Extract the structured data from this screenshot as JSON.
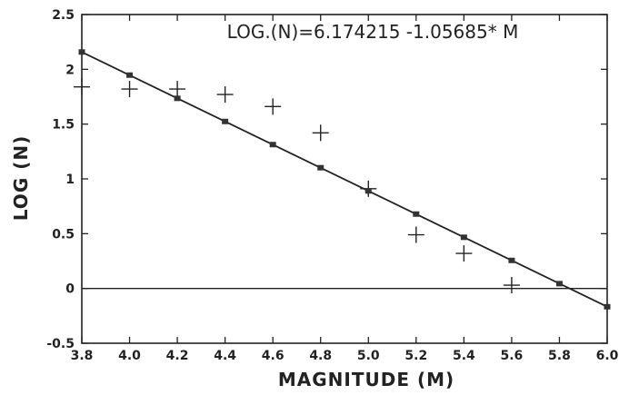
{
  "chart_data": {
    "type": "scatter",
    "title": "LOG.(N)=6.174215 -1.05685* M",
    "xlabel": "MAGNITUDE (M)",
    "ylabel": "LOG (N)",
    "xlim": [
      3.8,
      6.0
    ],
    "ylim": [
      -0.5,
      2.5
    ],
    "x_ticks": [
      "3.8",
      "4.0",
      "4.2",
      "4.4",
      "4.6",
      "4.8",
      "5.0",
      "5.2",
      "5.4",
      "5.6",
      "5.8",
      "6.0"
    ],
    "y_ticks": [
      "-0.5",
      "0",
      "0.5",
      "1",
      "1.5",
      "2",
      "2.5"
    ],
    "grid": false,
    "legend": "none",
    "zero_line": 0,
    "series": [
      {
        "marker": "plus",
        "x": [
          3.8,
          4.0,
          4.2,
          4.4,
          4.6,
          4.8,
          5.0,
          5.2,
          5.4,
          5.6
        ],
        "y": [
          1.84,
          1.82,
          1.82,
          1.77,
          1.66,
          1.42,
          0.91,
          0.49,
          0.32,
          0.03
        ]
      },
      {
        "marker": "square",
        "line": true,
        "x": [
          3.8,
          4.0,
          4.2,
          4.4,
          4.6,
          4.8,
          5.0,
          5.2,
          5.4,
          5.6,
          5.8,
          6.0
        ],
        "y": [
          2.158,
          1.947,
          1.735,
          1.524,
          1.313,
          1.102,
          0.89,
          0.679,
          0.467,
          0.256,
          0.044,
          -0.167
        ]
      }
    ]
  }
}
